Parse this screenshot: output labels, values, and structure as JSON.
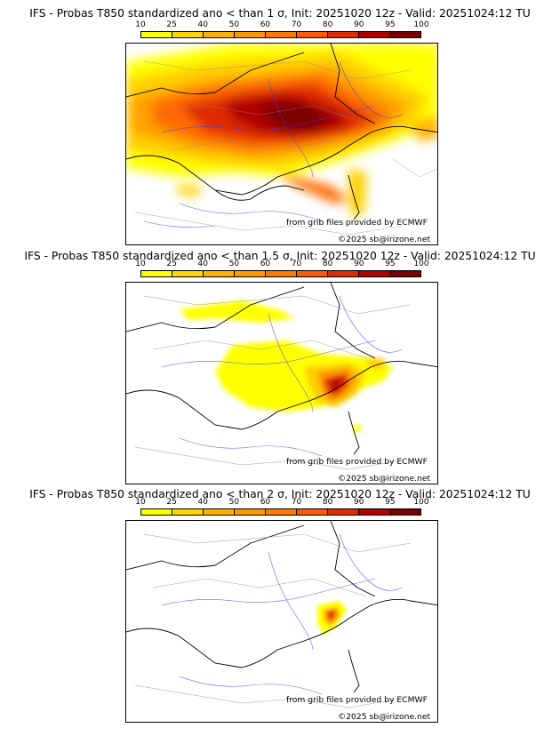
{
  "scale": {
    "ticks": [
      "10",
      "25",
      "40",
      "50",
      "60",
      "70",
      "80",
      "90",
      "95",
      "100"
    ],
    "colors": [
      "#ffff00",
      "#ffd700",
      "#ffb300",
      "#ff9900",
      "#ff7a00",
      "#ff5a00",
      "#e02a00",
      "#b00000",
      "#7a0000"
    ]
  },
  "panels": [
    {
      "title": "IFS - Probas T850  standardized ano < than 1 σ, Init: 20251020 12z - Valid: 20251024:12 TU",
      "source": "from grib files provided by ECMWF",
      "copyright": "©2025 sb@irizone.net"
    },
    {
      "title": "IFS - Probas T850  standardized ano < than 1.5 σ, Init: 20251020 12z - Valid: 20251024:12 TU",
      "source": "from grib files provided by ECMWF",
      "copyright": "©2025 sb@irizone.net"
    },
    {
      "title": "IFS - Probas T850  standardized ano < than 2 σ, Init: 20251020 12z - Valid: 20251024:12 TU",
      "source": "from grib files provided by ECMWF",
      "copyright": "©2025 sb@irizone.net"
    }
  ]
}
